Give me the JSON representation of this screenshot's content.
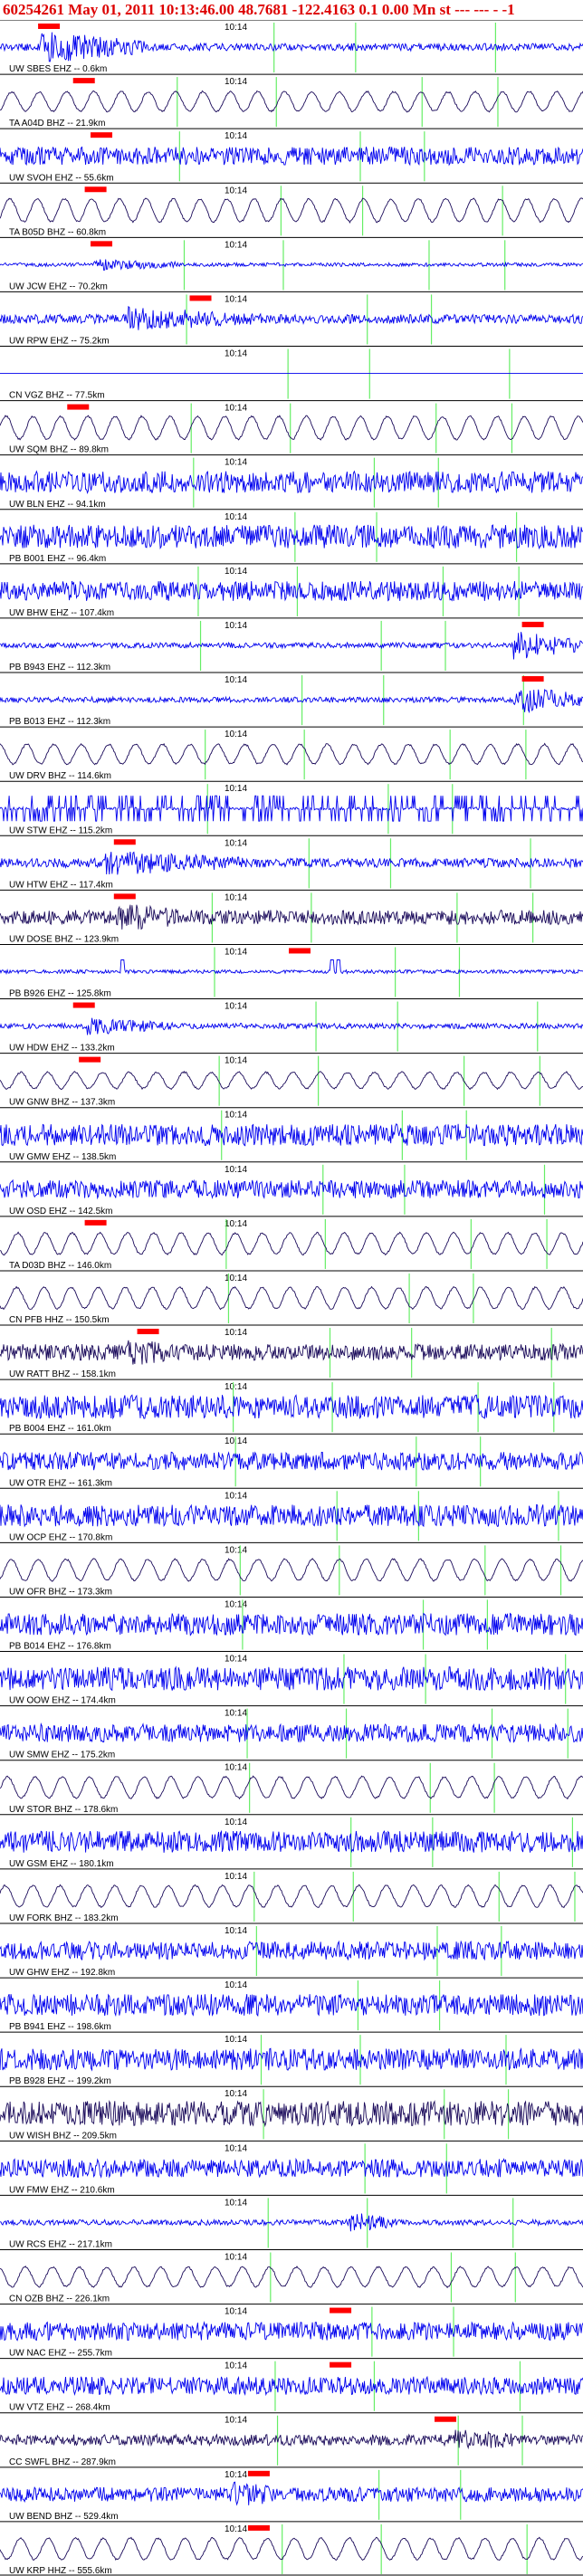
{
  "header": {
    "text": "60254261 May 01, 2011 10:13:46.00    48.7681 -122.4163  0.1 0.00 Mn st --- --- -  -1",
    "color": "#dd0000"
  },
  "colors": {
    "trace_main": "#0000ee",
    "trace_alt": "#1a0a5a",
    "pick_line": "#66ee66",
    "pick_box": "#ff0000",
    "label": "#000000"
  },
  "chart_data": {
    "type": "line",
    "title": "",
    "time_label": "10:14",
    "traces": [
      {
        "label": "UW SBES EHZ -- 0.6km",
        "color": "trace_main",
        "amp": 4,
        "pick": 0.07,
        "burst": [
          0.07,
          0.25,
          18
        ]
      },
      {
        "label": "TA A04D BHZ -- 21.9km",
        "color": "trace_alt",
        "amp": 12,
        "pick": 0.13,
        "waves": true
      },
      {
        "label": "UW SVOH EHZ -- 55.6km",
        "color": "trace_main",
        "amp": 10,
        "pick": 0.16
      },
      {
        "label": "TA B05D BHZ -- 60.8km",
        "color": "trace_alt",
        "amp": 14,
        "pick": 0.15,
        "waves": true
      },
      {
        "label": "UW JCW EHZ -- 70.2km",
        "color": "trace_main",
        "amp": 2,
        "pick": 0.16,
        "burst": [
          0.16,
          0.3,
          8
        ]
      },
      {
        "label": "UW RPW EHZ -- 75.2km",
        "color": "trace_main",
        "amp": 5,
        "pick": 0.33,
        "burst": [
          0.22,
          0.45,
          14
        ]
      },
      {
        "label": "CN VGZ BHZ -- 77.5km",
        "color": "trace_main",
        "amp": 0,
        "pick": null
      },
      {
        "label": "UW SQM BHZ -- 89.8km",
        "color": "trace_alt",
        "amp": 14,
        "pick": 0.12,
        "waves": true
      },
      {
        "label": "UW BLN EHZ -- 94.1km",
        "color": "trace_main",
        "amp": 12,
        "pick": null
      },
      {
        "label": "PB B001 EHZ -- 96.4km",
        "color": "trace_main",
        "amp": 13,
        "pick": null
      },
      {
        "label": "UW BHW EHZ -- 107.4km",
        "color": "trace_main",
        "amp": 11,
        "pick": null
      },
      {
        "label": "PB B943 EHZ -- 112.3km",
        "color": "trace_main",
        "amp": 3,
        "pick": 0.9,
        "burst": [
          0.88,
          1.0,
          16
        ]
      },
      {
        "label": "PB B013 EHZ -- 112.3km",
        "color": "trace_main",
        "amp": 3,
        "pick": 0.9,
        "burst": [
          0.88,
          1.0,
          16
        ]
      },
      {
        "label": "UW DRV BHZ -- 114.6km",
        "color": "trace_alt",
        "amp": 12,
        "pick": null,
        "waves": true
      },
      {
        "label": "UW STW EHZ -- 115.2km",
        "color": "trace_main",
        "amp": 14,
        "pick": null,
        "spiky": true
      },
      {
        "label": "UW HTW EHZ -- 117.4km",
        "color": "trace_main",
        "amp": 5,
        "pick": 0.2,
        "burst": [
          0.18,
          0.45,
          14
        ]
      },
      {
        "label": "UW DOSE BHZ -- 123.9km",
        "color": "trace_alt",
        "amp": 8,
        "pick": 0.2,
        "burst": [
          0.2,
          0.35,
          16
        ]
      },
      {
        "label": "PB B926 EHZ -- 125.8km",
        "color": "trace_main",
        "amp": 2,
        "pick": 0.5,
        "spikes": [
          0.21,
          0.57,
          0.58
        ]
      },
      {
        "label": "UW HDW EHZ -- 133.2km",
        "color": "trace_main",
        "amp": 3,
        "pick": 0.13,
        "burst": [
          0.15,
          0.3,
          10
        ]
      },
      {
        "label": "UW GNW BHZ -- 137.3km",
        "color": "trace_alt",
        "amp": 10,
        "pick": 0.14,
        "waves": true
      },
      {
        "label": "UW GMW EHZ -- 138.5km",
        "color": "trace_main",
        "amp": 12,
        "pick": null
      },
      {
        "label": "UW OSD EHZ -- 142.5km",
        "color": "trace_main",
        "amp": 10,
        "pick": null
      },
      {
        "label": "TA D03D BHZ -- 146.0km",
        "color": "trace_alt",
        "amp": 13,
        "pick": 0.15,
        "waves": true
      },
      {
        "label": "CN PFB HHZ -- 150.5km",
        "color": "trace_alt",
        "amp": 13,
        "pick": null,
        "waves": true
      },
      {
        "label": "UW RATT BHZ -- 158.1km",
        "color": "trace_alt",
        "amp": 9,
        "pick": 0.24,
        "burst": [
          0.22,
          0.32,
          16
        ]
      },
      {
        "label": "PB B004 EHZ -- 161.0km",
        "color": "trace_main",
        "amp": 13,
        "pick": null
      },
      {
        "label": "UW OTR EHZ -- 161.3km",
        "color": "trace_main",
        "amp": 10,
        "pick": null
      },
      {
        "label": "UW OCP EHZ -- 170.8km",
        "color": "trace_main",
        "amp": 12,
        "pick": null
      },
      {
        "label": "UW OFR BHZ -- 173.3km",
        "color": "trace_alt",
        "amp": 13,
        "pick": null,
        "waves": true
      },
      {
        "label": "PB B014 EHZ -- 176.8km",
        "color": "trace_main",
        "amp": 12,
        "pick": null
      },
      {
        "label": "UW OOW EHZ -- 174.4km",
        "color": "trace_main",
        "amp": 13,
        "pick": null
      },
      {
        "label": "UW SMW EHZ -- 175.2km",
        "color": "trace_main",
        "amp": 10,
        "pick": null
      },
      {
        "label": "UW STOR BHZ -- 178.6km",
        "color": "trace_alt",
        "amp": 13,
        "pick": null,
        "waves": true
      },
      {
        "label": "UW GSM EHZ -- 180.1km",
        "color": "trace_main",
        "amp": 12,
        "pick": null
      },
      {
        "label": "UW FORK BHZ -- 183.2km",
        "color": "trace_alt",
        "amp": 13,
        "pick": null,
        "waves": true
      },
      {
        "label": "UW GHW EHZ -- 192.8km",
        "color": "trace_main",
        "amp": 10,
        "pick": null
      },
      {
        "label": "PB B941 EHZ -- 198.6km",
        "color": "trace_main",
        "amp": 12,
        "pick": null
      },
      {
        "label": "PB B928 EHZ -- 199.2km",
        "color": "trace_main",
        "amp": 12,
        "pick": null
      },
      {
        "label": "UW WISH BHZ -- 209.5km",
        "color": "trace_alt",
        "amp": 14,
        "pick": null
      },
      {
        "label": "UW FMW EHZ -- 210.6km",
        "color": "trace_main",
        "amp": 10,
        "pick": null
      },
      {
        "label": "UW RCS EHZ -- 217.1km",
        "color": "trace_main",
        "amp": 3,
        "pick": null,
        "burst": [
          0.6,
          0.68,
          12
        ]
      },
      {
        "label": "CN OZB BHZ -- 226.1km",
        "color": "trace_alt",
        "amp": 12,
        "pick": null,
        "waves": true
      },
      {
        "label": "UW NAC EHZ -- 255.7km",
        "color": "trace_main",
        "amp": 10,
        "pick": 0.57
      },
      {
        "label": "UW VTZ EHZ -- 268.4km",
        "color": "trace_main",
        "amp": 10,
        "pick": 0.57
      },
      {
        "label": "CC SWFL BHZ -- 287.9km",
        "color": "trace_alt",
        "amp": 6,
        "pick": 0.75,
        "burst": [
          0.78,
          0.9,
          14
        ]
      },
      {
        "label": "UW BEND BHZ -- 529.4km",
        "color": "trace_main",
        "amp": 8,
        "pick": 0.43,
        "burst": [
          0.4,
          0.55,
          14
        ]
      },
      {
        "label": "UW KRP HHZ -- 555.6km",
        "color": "trace_alt",
        "amp": 13,
        "pick": 0.43,
        "waves": true
      }
    ]
  }
}
